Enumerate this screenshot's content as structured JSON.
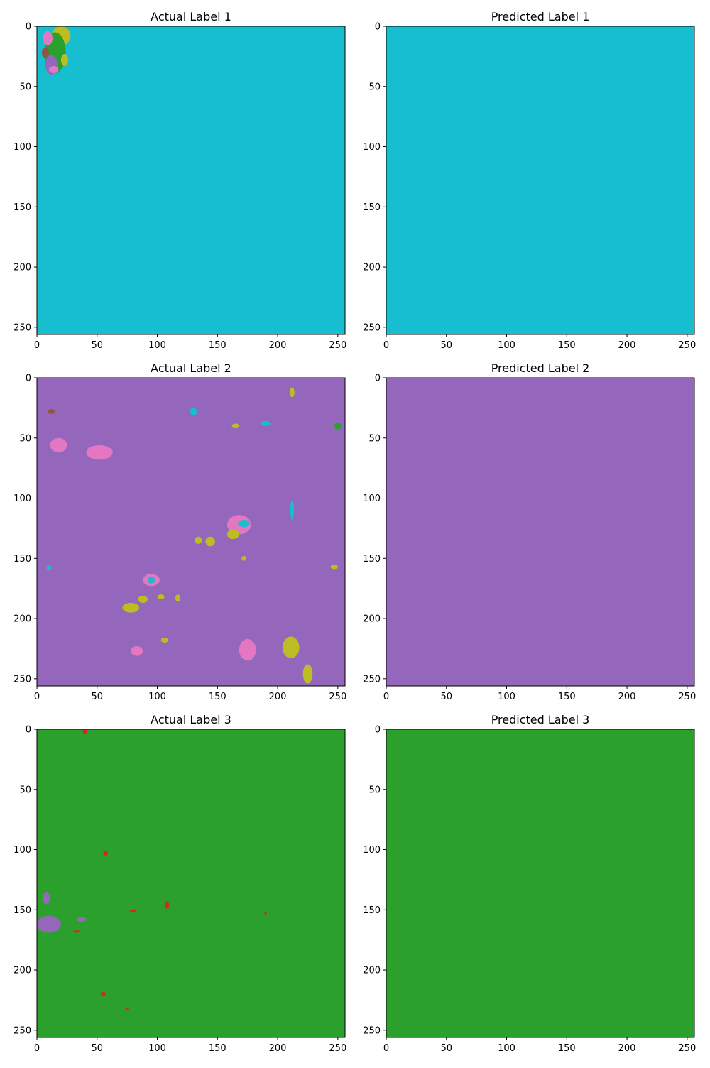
{
  "figure": {
    "background": "#ffffff"
  },
  "colors": {
    "blue": "#1f77b4",
    "orange": "#ff7f0e",
    "green": "#2ca02c",
    "red": "#d62728",
    "purple": "#9467bd",
    "brown": "#8c564b",
    "pink": "#e377c2",
    "gray": "#7f7f7f",
    "olive": "#bcbd22",
    "cyan": "#17becf"
  },
  "chart_data": [
    {
      "type": "heatmap",
      "title": "Actual Label 1",
      "xlim": [
        0,
        256
      ],
      "ylim": [
        256,
        0
      ],
      "xticks": [
        0,
        50,
        100,
        150,
        200,
        250
      ],
      "yticks": [
        0,
        50,
        100,
        150,
        200,
        250
      ],
      "background_class": "cyan",
      "regions": [
        {
          "cls": "olive",
          "cx": 20,
          "cy": 8,
          "rx": 8,
          "ry": 8
        },
        {
          "cls": "green",
          "cx": 15,
          "cy": 22,
          "rx": 9,
          "ry": 17
        },
        {
          "cls": "pink",
          "cx": 9,
          "cy": 10,
          "rx": 4,
          "ry": 6
        },
        {
          "cls": "purple",
          "cx": 12,
          "cy": 32,
          "rx": 5,
          "ry": 8
        },
        {
          "cls": "brown",
          "cx": 7,
          "cy": 22,
          "rx": 3,
          "ry": 4
        },
        {
          "cls": "olive",
          "cx": 23,
          "cy": 28,
          "rx": 3,
          "ry": 5
        },
        {
          "cls": "pink",
          "cx": 14,
          "cy": 36,
          "rx": 4,
          "ry": 3
        }
      ]
    },
    {
      "type": "heatmap",
      "title": "Predicted Label 1",
      "xlim": [
        0,
        256
      ],
      "ylim": [
        256,
        0
      ],
      "xticks": [
        0,
        50,
        100,
        150,
        200,
        250
      ],
      "yticks": [
        0,
        50,
        100,
        150,
        200,
        250
      ],
      "background_class": "cyan",
      "regions": []
    },
    {
      "type": "heatmap",
      "title": "Actual Label 2",
      "xlim": [
        0,
        256
      ],
      "ylim": [
        256,
        0
      ],
      "xticks": [
        0,
        50,
        100,
        150,
        200,
        250
      ],
      "yticks": [
        0,
        50,
        100,
        150,
        200,
        250
      ],
      "background_class": "purple",
      "regions": [
        {
          "cls": "pink",
          "cx": 18,
          "cy": 56,
          "rx": 7,
          "ry": 6
        },
        {
          "cls": "pink",
          "cx": 52,
          "cy": 62,
          "rx": 11,
          "ry": 6
        },
        {
          "cls": "pink",
          "cx": 168,
          "cy": 122,
          "rx": 10,
          "ry": 8
        },
        {
          "cls": "cyan",
          "cx": 172,
          "cy": 121,
          "rx": 5,
          "ry": 3
        },
        {
          "cls": "olive",
          "cx": 163,
          "cy": 130,
          "rx": 5,
          "ry": 4
        },
        {
          "cls": "olive",
          "cx": 144,
          "cy": 136,
          "rx": 4,
          "ry": 4
        },
        {
          "cls": "olive",
          "cx": 134,
          "cy": 135,
          "rx": 3,
          "ry": 3
        },
        {
          "cls": "pink",
          "cx": 95,
          "cy": 168,
          "rx": 7,
          "ry": 5
        },
        {
          "cls": "cyan",
          "cx": 95,
          "cy": 168,
          "rx": 3,
          "ry": 3
        },
        {
          "cls": "olive",
          "cx": 78,
          "cy": 191,
          "rx": 7,
          "ry": 4
        },
        {
          "cls": "olive",
          "cx": 88,
          "cy": 184,
          "rx": 4,
          "ry": 3
        },
        {
          "cls": "olive",
          "cx": 103,
          "cy": 182,
          "rx": 3,
          "ry": 2
        },
        {
          "cls": "olive",
          "cx": 117,
          "cy": 183,
          "rx": 2,
          "ry": 3
        },
        {
          "cls": "pink",
          "cx": 175,
          "cy": 226,
          "rx": 7,
          "ry": 9
        },
        {
          "cls": "olive",
          "cx": 211,
          "cy": 224,
          "rx": 7,
          "ry": 9
        },
        {
          "cls": "olive",
          "cx": 225,
          "cy": 246,
          "rx": 4,
          "ry": 8
        },
        {
          "cls": "pink",
          "cx": 83,
          "cy": 227,
          "rx": 5,
          "ry": 4
        },
        {
          "cls": "olive",
          "cx": 106,
          "cy": 218,
          "rx": 3,
          "ry": 2
        },
        {
          "cls": "cyan",
          "cx": 212,
          "cy": 110,
          "rx": 1.5,
          "ry": 8
        },
        {
          "cls": "cyan",
          "cx": 130,
          "cy": 28,
          "rx": 3,
          "ry": 3
        },
        {
          "cls": "cyan",
          "cx": 190,
          "cy": 38,
          "rx": 4,
          "ry": 2
        },
        {
          "cls": "olive",
          "cx": 165,
          "cy": 40,
          "rx": 3,
          "ry": 2
        },
        {
          "cls": "olive",
          "cx": 212,
          "cy": 12,
          "rx": 2,
          "ry": 4
        },
        {
          "cls": "green",
          "cx": 250,
          "cy": 40,
          "rx": 3,
          "ry": 3
        },
        {
          "cls": "brown",
          "cx": 12,
          "cy": 28,
          "rx": 3,
          "ry": 2
        },
        {
          "cls": "olive",
          "cx": 247,
          "cy": 157,
          "rx": 3,
          "ry": 2
        },
        {
          "cls": "olive",
          "cx": 172,
          "cy": 150,
          "rx": 2,
          "ry": 2
        },
        {
          "cls": "cyan",
          "cx": 10,
          "cy": 158,
          "rx": 2,
          "ry": 2
        }
      ]
    },
    {
      "type": "heatmap",
      "title": "Predicted Label 2",
      "xlim": [
        0,
        256
      ],
      "ylim": [
        256,
        0
      ],
      "xticks": [
        0,
        50,
        100,
        150,
        200,
        250
      ],
      "yticks": [
        0,
        50,
        100,
        150,
        200,
        250
      ],
      "background_class": "purple",
      "regions": []
    },
    {
      "type": "heatmap",
      "title": "Actual Label 3",
      "xlim": [
        0,
        256
      ],
      "ylim": [
        256,
        0
      ],
      "xticks": [
        0,
        50,
        100,
        150,
        200,
        250
      ],
      "yticks": [
        0,
        50,
        100,
        150,
        200,
        250
      ],
      "background_class": "green",
      "regions": [
        {
          "cls": "purple",
          "cx": 10,
          "cy": 162,
          "rx": 10,
          "ry": 7
        },
        {
          "cls": "purple",
          "cx": 8,
          "cy": 140,
          "rx": 3,
          "ry": 5
        },
        {
          "cls": "purple",
          "cx": 37,
          "cy": 158,
          "rx": 4,
          "ry": 2
        },
        {
          "cls": "red",
          "cx": 108,
          "cy": 146,
          "rx": 2,
          "ry": 3
        },
        {
          "cls": "red",
          "cx": 57,
          "cy": 103,
          "rx": 2,
          "ry": 2
        },
        {
          "cls": "red",
          "cx": 55,
          "cy": 220,
          "rx": 2,
          "ry": 2
        },
        {
          "cls": "red",
          "cx": 40,
          "cy": 2,
          "rx": 2,
          "ry": 2
        },
        {
          "cls": "red",
          "cx": 190,
          "cy": 153,
          "rx": 1,
          "ry": 1
        },
        {
          "cls": "red",
          "cx": 80,
          "cy": 151,
          "rx": 3,
          "ry": 1
        },
        {
          "cls": "red",
          "cx": 33,
          "cy": 168,
          "rx": 3,
          "ry": 1
        },
        {
          "cls": "red",
          "cx": 75,
          "cy": 232,
          "rx": 1,
          "ry": 1
        }
      ]
    },
    {
      "type": "heatmap",
      "title": "Predicted Label 3",
      "xlim": [
        0,
        256
      ],
      "ylim": [
        256,
        0
      ],
      "xticks": [
        0,
        50,
        100,
        150,
        200,
        250
      ],
      "yticks": [
        0,
        50,
        100,
        150,
        200,
        250
      ],
      "background_class": "green",
      "regions": []
    }
  ]
}
